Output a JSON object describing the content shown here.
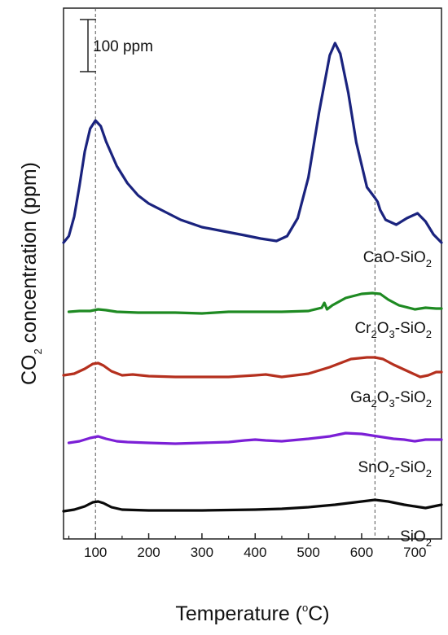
{
  "chart_data": {
    "type": "line",
    "title": "",
    "xlabel": "Temperature (",
    "xlabel_sup": "o",
    "xlabel_tail": "C)",
    "ylabel": "CO",
    "ylabel_sub": "2",
    "ylabel_tail": " concentration (ppm)",
    "xlim": [
      40,
      750
    ],
    "ylim_note": "y axis has no tick labels; curves vertically offset for clarity",
    "x_ticks": [
      100,
      200,
      300,
      400,
      500,
      600,
      700
    ],
    "x_tick_labels": [
      "100",
      "200",
      "300",
      "400",
      "500",
      "600",
      "700"
    ],
    "reference_lines_x": [
      100,
      625
    ],
    "scale_bar": {
      "label": "100 ppm",
      "value_ppm": 100
    },
    "grid": false,
    "legend": "labels placed next to each curve on the right",
    "series": [
      {
        "label_parts": [
          "CaO-SiO",
          "2",
          ""
        ],
        "color": "#1a237e",
        "offset_ppm": 0,
        "x": [
          40,
          50,
          60,
          70,
          80,
          90,
          100,
          110,
          120,
          140,
          160,
          180,
          200,
          230,
          260,
          300,
          340,
          380,
          410,
          440,
          460,
          480,
          500,
          520,
          540,
          550,
          560,
          575,
          590,
          610,
          625,
          630,
          635,
          645,
          665,
          685,
          705,
          720,
          735,
          750
        ],
        "y": [
          0,
          8,
          32,
          70,
          112,
          140,
          150,
          143,
          124,
          94,
          73,
          58,
          48,
          38,
          28,
          19,
          14,
          9,
          5,
          2,
          8,
          30,
          80,
          160,
          230,
          245,
          232,
          184,
          123,
          68,
          55,
          50,
          40,
          28,
          22,
          30,
          36,
          26,
          10,
          0
        ]
      },
      {
        "label_parts": [
          "Cr",
          "2",
          "O",
          "3",
          "-SiO",
          "2",
          ""
        ],
        "color": "#1e8a22",
        "offset_ppm": -85,
        "x": [
          50,
          70,
          90,
          105,
          120,
          140,
          180,
          250,
          300,
          350,
          400,
          450,
          500,
          525,
          530,
          535,
          545,
          570,
          600,
          620,
          635,
          650,
          670,
          700,
          720,
          740,
          750
        ],
        "y": [
          0,
          1,
          1,
          3,
          2,
          0,
          -1,
          -1,
          -2,
          0,
          0,
          0,
          1,
          5,
          11,
          3,
          8,
          17,
          22,
          23,
          22,
          15,
          8,
          3,
          5,
          4,
          4
        ]
      },
      {
        "label_parts": [
          "Ga",
          "2",
          "O",
          "3",
          "-SiO",
          "2",
          ""
        ],
        "color": "#b5301e",
        "offset_ppm": -165,
        "x": [
          40,
          60,
          80,
          95,
          105,
          115,
          130,
          150,
          170,
          200,
          250,
          300,
          350,
          400,
          420,
          450,
          500,
          540,
          580,
          610,
          625,
          640,
          660,
          690,
          710,
          725,
          740,
          750
        ],
        "y": [
          2,
          4,
          10,
          16,
          17,
          14,
          7,
          2,
          3,
          1,
          0,
          0,
          0,
          2,
          3,
          0,
          4,
          12,
          22,
          24,
          24,
          22,
          15,
          6,
          0,
          2,
          6,
          6
        ]
      },
      {
        "label_parts": [
          "SnO",
          "2",
          "-SiO",
          "2",
          ""
        ],
        "color": "#7b1fd6",
        "offset_ppm": -250,
        "x": [
          50,
          70,
          90,
          105,
          120,
          140,
          160,
          200,
          250,
          300,
          350,
          380,
          400,
          420,
          450,
          500,
          540,
          570,
          600,
          620,
          640,
          660,
          680,
          700,
          720,
          750
        ],
        "y": [
          4,
          6,
          10,
          12,
          9,
          6,
          5,
          4,
          3,
          4,
          5,
          7,
          8,
          7,
          6,
          9,
          12,
          16,
          15,
          13,
          11,
          9,
          8,
          6,
          8,
          8
        ]
      },
      {
        "label_parts": [
          "SiO",
          "2",
          ""
        ],
        "color": "#0a0a0a",
        "offset_ppm": -330,
        "x": [
          40,
          60,
          80,
          95,
          105,
          115,
          130,
          150,
          200,
          300,
          400,
          450,
          500,
          550,
          600,
          625,
          650,
          680,
          700,
          720,
          735,
          750
        ],
        "y": [
          0,
          2,
          6,
          11,
          12,
          10,
          5,
          2,
          1,
          1,
          2,
          3,
          5,
          8,
          12,
          14,
          12,
          8,
          6,
          4,
          6,
          8
        ]
      }
    ]
  }
}
